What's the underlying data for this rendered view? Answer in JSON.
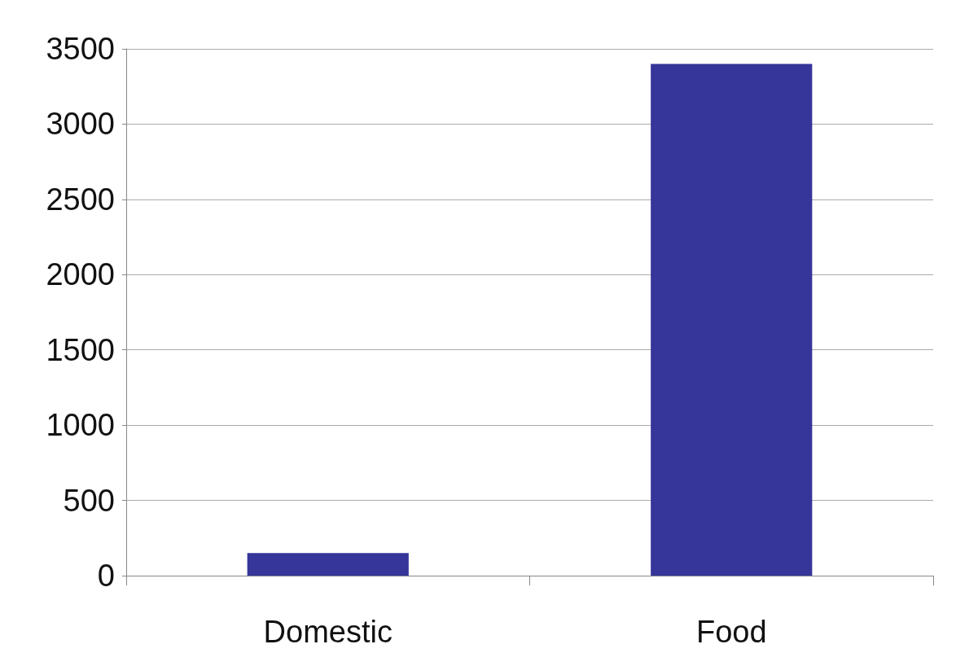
{
  "chart_data": {
    "type": "bar",
    "categories": [
      "Domestic",
      "Food"
    ],
    "values": [
      150,
      3400
    ],
    "color": "#35359a",
    "ylim": [
      0,
      3500
    ],
    "yticks": [
      0,
      500,
      1000,
      1500,
      2000,
      2500,
      3000,
      3500
    ],
    "grid": "y"
  }
}
